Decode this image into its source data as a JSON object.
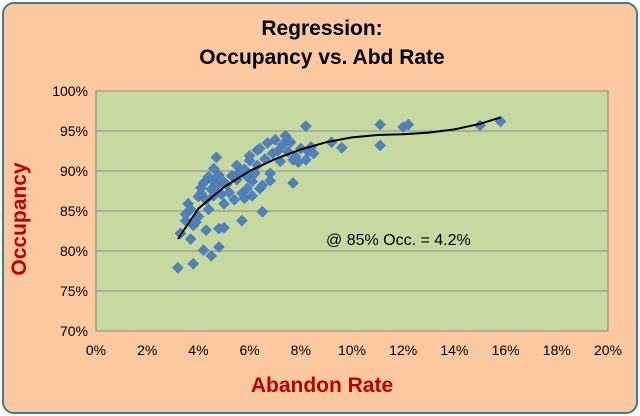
{
  "colors": {
    "background": "#fbc8a0",
    "plot_area": "#c6d9a0",
    "border": "#3f7f7f",
    "marker": "#4f81bd",
    "trendline": "#000000",
    "axis_title": "#c00000"
  },
  "chart_data": {
    "type": "scatter",
    "title": [
      "Regression:",
      "Occupancy vs. Abd Rate"
    ],
    "xlabel": "Abandon Rate",
    "ylabel": "Occupancy",
    "xlim": [
      0,
      0.2
    ],
    "ylim": [
      0.7,
      1.0
    ],
    "x_ticks": [
      "0%",
      "2%",
      "4%",
      "6%",
      "8%",
      "10%",
      "12%",
      "14%",
      "16%",
      "18%",
      "20%"
    ],
    "y_ticks": [
      "70%",
      "75%",
      "80%",
      "85%",
      "90%",
      "95%",
      "100%"
    ],
    "grid": "horizontal",
    "marker": "diamond",
    "annotation": "@ 85% Occ. = 4.2%",
    "trendline": {
      "x": [
        0.032,
        0.04,
        0.05,
        0.06,
        0.07,
        0.08,
        0.09,
        0.1,
        0.11,
        0.12,
        0.13,
        0.14,
        0.15,
        0.158
      ],
      "y": [
        0.815,
        0.853,
        0.88,
        0.9,
        0.915,
        0.927,
        0.936,
        0.942,
        0.945,
        0.946,
        0.948,
        0.952,
        0.959,
        0.967
      ]
    },
    "points": [
      [
        0.032,
        0.779
      ],
      [
        0.033,
        0.822
      ],
      [
        0.035,
        0.838
      ],
      [
        0.035,
        0.846
      ],
      [
        0.036,
        0.859
      ],
      [
        0.037,
        0.852
      ],
      [
        0.037,
        0.815
      ],
      [
        0.038,
        0.784
      ],
      [
        0.038,
        0.832
      ],
      [
        0.039,
        0.836
      ],
      [
        0.04,
        0.843
      ],
      [
        0.04,
        0.868
      ],
      [
        0.041,
        0.872
      ],
      [
        0.041,
        0.879
      ],
      [
        0.042,
        0.885
      ],
      [
        0.042,
        0.801
      ],
      [
        0.043,
        0.826
      ],
      [
        0.043,
        0.864
      ],
      [
        0.044,
        0.852
      ],
      [
        0.044,
        0.893
      ],
      [
        0.045,
        0.877
      ],
      [
        0.045,
        0.794
      ],
      [
        0.046,
        0.903
      ],
      [
        0.046,
        0.887
      ],
      [
        0.046,
        0.869
      ],
      [
        0.047,
        0.917
      ],
      [
        0.047,
        0.881
      ],
      [
        0.048,
        0.828
      ],
      [
        0.048,
        0.895
      ],
      [
        0.048,
        0.805
      ],
      [
        0.049,
        0.889
      ],
      [
        0.049,
        0.871
      ],
      [
        0.05,
        0.859
      ],
      [
        0.05,
        0.829
      ],
      [
        0.051,
        0.883
      ],
      [
        0.052,
        0.873
      ],
      [
        0.053,
        0.894
      ],
      [
        0.054,
        0.864
      ],
      [
        0.055,
        0.889
      ],
      [
        0.055,
        0.907
      ],
      [
        0.056,
        0.898
      ],
      [
        0.057,
        0.872
      ],
      [
        0.057,
        0.838
      ],
      [
        0.058,
        0.902
      ],
      [
        0.058,
        0.866
      ],
      [
        0.059,
        0.878
      ],
      [
        0.059,
        0.893
      ],
      [
        0.06,
        0.913
      ],
      [
        0.06,
        0.919
      ],
      [
        0.061,
        0.887
      ],
      [
        0.061,
        0.869
      ],
      [
        0.062,
        0.897
      ],
      [
        0.063,
        0.926
      ],
      [
        0.063,
        0.907
      ],
      [
        0.064,
        0.928
      ],
      [
        0.064,
        0.878
      ],
      [
        0.065,
        0.882
      ],
      [
        0.065,
        0.849
      ],
      [
        0.066,
        0.915
      ],
      [
        0.067,
        0.935
      ],
      [
        0.068,
        0.888
      ],
      [
        0.068,
        0.897
      ],
      [
        0.069,
        0.922
      ],
      [
        0.07,
        0.939
      ],
      [
        0.071,
        0.925
      ],
      [
        0.072,
        0.912
      ],
      [
        0.073,
        0.933
      ],
      [
        0.074,
        0.944
      ],
      [
        0.075,
        0.924
      ],
      [
        0.076,
        0.936
      ],
      [
        0.077,
        0.914
      ],
      [
        0.077,
        0.885
      ],
      [
        0.078,
        0.918
      ],
      [
        0.079,
        0.911
      ],
      [
        0.08,
        0.928
      ],
      [
        0.082,
        0.914
      ],
      [
        0.082,
        0.956
      ],
      [
        0.083,
        0.924
      ],
      [
        0.084,
        0.93
      ],
      [
        0.085,
        0.922
      ],
      [
        0.092,
        0.936
      ],
      [
        0.096,
        0.929
      ],
      [
        0.111,
        0.932
      ],
      [
        0.111,
        0.958
      ],
      [
        0.12,
        0.955
      ],
      [
        0.122,
        0.958
      ],
      [
        0.15,
        0.957
      ],
      [
        0.158,
        0.962
      ]
    ]
  }
}
